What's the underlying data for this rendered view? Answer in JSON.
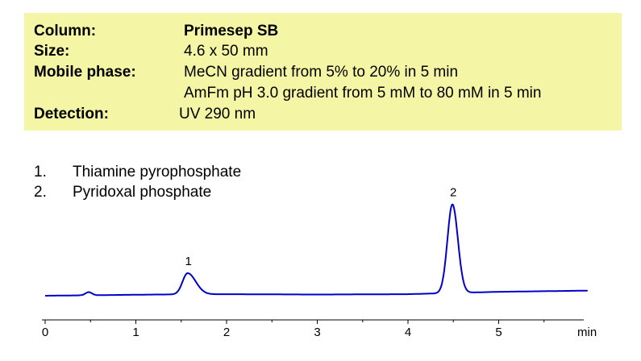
{
  "method": {
    "column_label": "Column:",
    "column_value": "Primesep SB",
    "size_label": "Size:",
    "size_value": "4.6 x 50 mm",
    "mobile_phase_label": "Mobile phase:",
    "mobile_phase_value_1": "MeCN gradient from 5% to 20% in 5 min",
    "mobile_phase_value_2": "AmFm pH 3.0 gradient from 5 mM to 80 mM in 5 min",
    "detection_label": "Detection:",
    "detection_value": "UV 290 nm",
    "background_color": "#f5f5a6"
  },
  "compounds": [
    {
      "number": "1.",
      "name": "Thiamine pyrophosphate"
    },
    {
      "number": "2.",
      "name": "Pyridoxal phosphate"
    }
  ],
  "chart_data": {
    "type": "line",
    "xlabel": "min",
    "xlim": [
      0,
      5.98
    ],
    "x_ticks": [
      "0",
      "1",
      "2",
      "3",
      "4",
      "5"
    ],
    "grid": false,
    "line_color": "#0000c8",
    "baseline": 0,
    "ylim": [
      -3,
      118
    ],
    "peaks": [
      {
        "label": "",
        "rt": 0.48,
        "height": 4,
        "width": 0.035
      },
      {
        "label": "1",
        "rt": 1.57,
        "height": 27,
        "width": 0.055,
        "tail": 0.09
      },
      {
        "label": "2",
        "rt": 4.49,
        "height": 113,
        "width": 0.055,
        "tail": 0.06
      }
    ],
    "drift": [
      {
        "x": 0.0,
        "y": 0.0
      },
      {
        "x": 1.2,
        "y": 1.5
      },
      {
        "x": 2.0,
        "y": 2.0
      },
      {
        "x": 3.0,
        "y": 1.5
      },
      {
        "x": 4.0,
        "y": 2.0
      },
      {
        "x": 5.0,
        "y": 5.0
      },
      {
        "x": 5.98,
        "y": 6.5
      }
    ]
  }
}
